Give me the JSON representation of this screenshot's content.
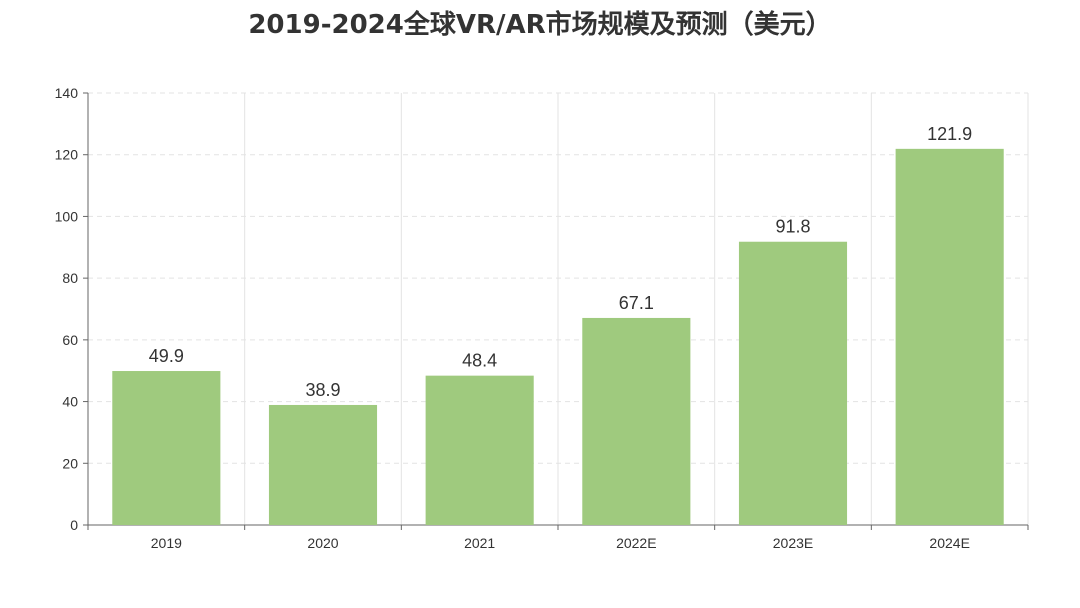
{
  "chart_data": {
    "type": "bar",
    "title": "2019-2024全球VR/AR市场规模及预测（美元）",
    "categories": [
      "2019",
      "2020",
      "2021",
      "2022E",
      "2023E",
      "2024E"
    ],
    "values": [
      49.9,
      38.9,
      48.4,
      67.1,
      91.8,
      121.9
    ],
    "value_labels": [
      "49.9",
      "38.9",
      "48.4",
      "67.1",
      "91.8",
      "121.9"
    ],
    "ylim": [
      0,
      140
    ],
    "yticks": [
      0,
      20,
      40,
      60,
      80,
      100,
      120,
      140
    ],
    "ytick_labels": [
      "0",
      "20",
      "40",
      "60",
      "80",
      "100",
      "120",
      "140"
    ],
    "xlabel": "",
    "ylabel": "",
    "grid": true,
    "legend": "none",
    "colors": {
      "bar": "#9fca7e",
      "grid": "#e3e3e3",
      "axis": "#666666",
      "text": "#333333"
    }
  }
}
